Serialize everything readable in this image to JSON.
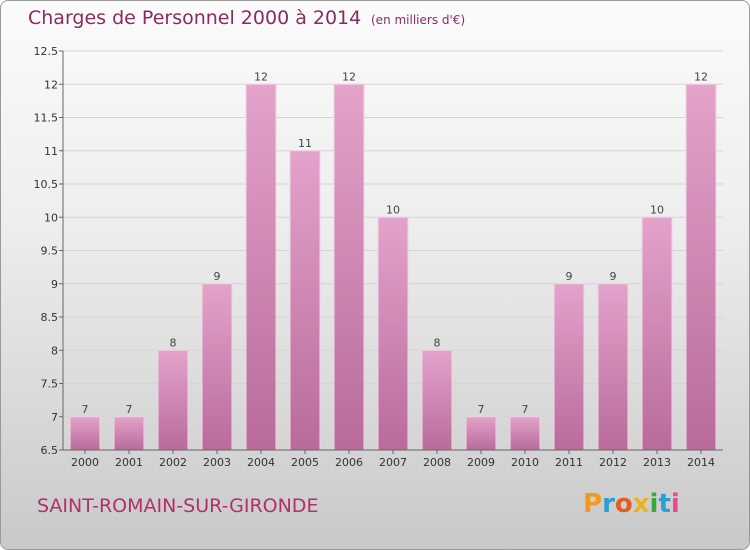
{
  "header": {
    "title": "Charges de Personnel 2000 à 2014",
    "subtitle": "(en milliers d'€)"
  },
  "footer": {
    "place": "SAINT-ROMAIN-SUR-GIRONDE",
    "logo_text": "Proxiti",
    "logo_colors": [
      "#f39a1e",
      "#2a9fd6",
      "#e85b1e",
      "#e8b31e",
      "#3ca83c",
      "#2a9fd6",
      "#e84a8a"
    ]
  },
  "colors": {
    "title": "#8a2c5e",
    "bar_top": "#e3a3cb",
    "bar_bottom": "#b96b99",
    "grid": "#d4d4d4"
  },
  "chart_data": {
    "type": "bar",
    "title": "Charges de Personnel 2000 à 2014",
    "subtitle": "(en milliers d'€)",
    "xlabel": "",
    "ylabel": "",
    "categories": [
      "2000",
      "2001",
      "2002",
      "2003",
      "2004",
      "2005",
      "2006",
      "2007",
      "2008",
      "2009",
      "2010",
      "2011",
      "2012",
      "2013",
      "2014"
    ],
    "values": [
      7,
      7,
      8,
      9,
      12,
      11,
      12,
      10,
      8,
      7,
      7,
      9,
      9,
      10,
      12
    ],
    "ylim": [
      6.5,
      12.5
    ],
    "yticks": [
      "6.5",
      "7",
      "7.5",
      "8",
      "8.5",
      "9",
      "9.5",
      "10",
      "10.5",
      "11",
      "11.5",
      "12",
      "12.5"
    ],
    "grid": "horizontal",
    "legend": "none"
  }
}
